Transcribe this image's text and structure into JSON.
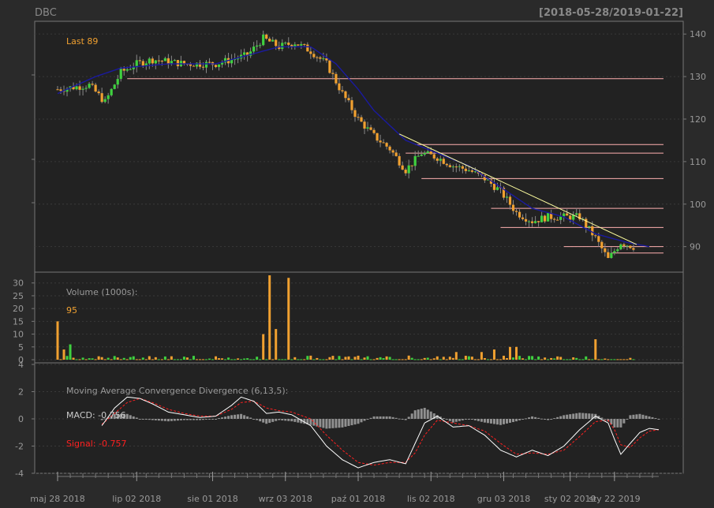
{
  "header": {
    "symbol": "DBC",
    "range": "[2018-05-28/2019-01-22]"
  },
  "colors": {
    "background": "#2a2a2a",
    "panel": "#222222",
    "border": "#777777",
    "grid": "#3a3a3a",
    "up": "#3fd13f",
    "down": "#f0a030",
    "ma": "#1a1aa0",
    "hline": "#ffb0b0",
    "trendline": "#ffffa0",
    "label": "#999999",
    "macd_line": "#ffffff",
    "signal_line": "#ff2020",
    "hist": "#909090",
    "signal_text": "#ff2020"
  },
  "chart_data": [
    {
      "type": "candlestick",
      "panel": "price",
      "legend": "Last 89",
      "yticks": [
        90,
        100,
        110,
        120,
        130,
        140
      ],
      "ylim": [
        84,
        143
      ],
      "n": 182,
      "anchors": [
        [
          0,
          127
        ],
        [
          10,
          128
        ],
        [
          15,
          124
        ],
        [
          20,
          131
        ],
        [
          25,
          133
        ],
        [
          30,
          134
        ],
        [
          40,
          133
        ],
        [
          50,
          133
        ],
        [
          60,
          135
        ],
        [
          65,
          139
        ],
        [
          70,
          137
        ],
        [
          75,
          138
        ],
        [
          80,
          136
        ],
        [
          85,
          133
        ],
        [
          90,
          126
        ],
        [
          95,
          120
        ],
        [
          100,
          116
        ],
        [
          105,
          113
        ],
        [
          110,
          108
        ],
        [
          115,
          112
        ],
        [
          120,
          111
        ],
        [
          125,
          109
        ],
        [
          130,
          108
        ],
        [
          135,
          106
        ],
        [
          140,
          103
        ],
        [
          145,
          98
        ],
        [
          150,
          96
        ],
        [
          155,
          97
        ],
        [
          160,
          97
        ],
        [
          165,
          97
        ],
        [
          170,
          92
        ],
        [
          174,
          87
        ],
        [
          178,
          91
        ],
        [
          182,
          90
        ],
        [
          187,
          89
        ]
      ],
      "moving_average": [
        [
          0,
          126
        ],
        [
          12,
          130
        ],
        [
          20,
          132
        ],
        [
          35,
          133
        ],
        [
          50,
          133
        ],
        [
          60,
          135
        ],
        [
          70,
          137
        ],
        [
          80,
          137
        ],
        [
          88,
          133
        ],
        [
          95,
          127
        ],
        [
          100,
          122
        ],
        [
          110,
          115
        ],
        [
          120,
          112
        ],
        [
          130,
          109
        ],
        [
          140,
          104
        ],
        [
          150,
          99
        ],
        [
          160,
          97
        ],
        [
          170,
          93
        ],
        [
          180,
          91
        ],
        [
          187,
          90
        ]
      ],
      "hlines": [
        {
          "from": 22,
          "to": 187,
          "y": 129.5
        },
        {
          "from": 115,
          "to": 187,
          "y": 106
        },
        {
          "from": 110,
          "to": 187,
          "y": 112
        },
        {
          "from": 113,
          "to": 187,
          "y": 114
        },
        {
          "from": 137,
          "to": 187,
          "y": 99
        },
        {
          "from": 140,
          "to": 187,
          "y": 94.5
        },
        {
          "from": 160,
          "to": 187,
          "y": 90
        },
        {
          "from": 175,
          "to": 187,
          "y": 88.5
        }
      ],
      "trendline": [
        [
          108,
          116.5
        ],
        [
          183,
          90.5
        ]
      ]
    },
    {
      "type": "bar",
      "panel": "volume",
      "label": "Volume (1000s):",
      "last_value": "95",
      "yticks": [
        0,
        5,
        10,
        15,
        20,
        25,
        30
      ],
      "ylim": [
        0,
        33
      ],
      "spikes": [
        [
          0,
          15
        ],
        [
          2,
          4
        ],
        [
          4,
          6
        ],
        [
          65,
          10
        ],
        [
          67,
          33
        ],
        [
          69,
          12
        ],
        [
          73,
          32
        ],
        [
          126,
          3
        ],
        [
          134,
          3
        ],
        [
          138,
          4
        ],
        [
          143,
          5
        ],
        [
          145,
          5
        ],
        [
          170,
          8
        ]
      ]
    },
    {
      "type": "line",
      "panel": "macd",
      "label": "Moving Average Convergence Divergence (6,13,5):",
      "macd_label": "MACD: -0.756",
      "signal_label": "Signal: -0.757",
      "yticks": [
        -4,
        -2,
        0,
        2,
        4
      ],
      "ylim": [
        -4,
        4
      ],
      "macd": [
        [
          14,
          -0.5
        ],
        [
          18,
          0.8
        ],
        [
          22,
          1.6
        ],
        [
          26,
          1.5
        ],
        [
          30,
          1.1
        ],
        [
          35,
          0.5
        ],
        [
          40,
          0.3
        ],
        [
          45,
          0.1
        ],
        [
          50,
          0.2
        ],
        [
          55,
          1.0
        ],
        [
          58,
          1.6
        ],
        [
          62,
          1.3
        ],
        [
          66,
          0.4
        ],
        [
          70,
          0.5
        ],
        [
          74,
          0.3
        ],
        [
          80,
          -0.5
        ],
        [
          85,
          -2.0
        ],
        [
          90,
          -3.0
        ],
        [
          95,
          -3.6
        ],
        [
          100,
          -3.2
        ],
        [
          105,
          -3.0
        ],
        [
          110,
          -3.3
        ],
        [
          113,
          -1.8
        ],
        [
          116,
          -0.3
        ],
        [
          120,
          0.2
        ],
        [
          125,
          -0.6
        ],
        [
          130,
          -0.5
        ],
        [
          135,
          -1.2
        ],
        [
          140,
          -2.3
        ],
        [
          145,
          -2.8
        ],
        [
          150,
          -2.3
        ],
        [
          155,
          -2.7
        ],
        [
          160,
          -2.0
        ],
        [
          165,
          -0.8
        ],
        [
          170,
          0.2
        ],
        [
          174,
          -0.3
        ],
        [
          176,
          -1.5
        ],
        [
          178,
          -2.6
        ],
        [
          181,
          -1.8
        ],
        [
          184,
          -1.0
        ],
        [
          187,
          -0.7
        ],
        [
          190,
          -0.8
        ]
      ],
      "signal": [
        [
          14,
          -0.4
        ],
        [
          18,
          0.4
        ],
        [
          22,
          1.2
        ],
        [
          26,
          1.5
        ],
        [
          30,
          1.2
        ],
        [
          35,
          0.7
        ],
        [
          40,
          0.4
        ],
        [
          45,
          0.2
        ],
        [
          50,
          0.2
        ],
        [
          55,
          0.7
        ],
        [
          58,
          1.2
        ],
        [
          62,
          1.3
        ],
        [
          66,
          0.8
        ],
        [
          70,
          0.6
        ],
        [
          74,
          0.5
        ],
        [
          80,
          0.0
        ],
        [
          85,
          -1.2
        ],
        [
          90,
          -2.3
        ],
        [
          95,
          -3.2
        ],
        [
          100,
          -3.4
        ],
        [
          105,
          -3.2
        ],
        [
          110,
          -3.2
        ],
        [
          113,
          -2.5
        ],
        [
          116,
          -1.2
        ],
        [
          120,
          -0.1
        ],
        [
          125,
          -0.3
        ],
        [
          130,
          -0.5
        ],
        [
          135,
          -0.9
        ],
        [
          140,
          -1.8
        ],
        [
          145,
          -2.6
        ],
        [
          150,
          -2.5
        ],
        [
          155,
          -2.6
        ],
        [
          160,
          -2.3
        ],
        [
          165,
          -1.3
        ],
        [
          170,
          -0.2
        ],
        [
          174,
          -0.1
        ],
        [
          176,
          -0.8
        ],
        [
          178,
          -1.9
        ],
        [
          181,
          -2.1
        ],
        [
          184,
          -1.4
        ],
        [
          187,
          -0.9
        ],
        [
          190,
          -0.8
        ]
      ]
    }
  ],
  "x_axis": {
    "ticks": [
      {
        "i": 0,
        "label": "maj 28 2018"
      },
      {
        "i": 25,
        "label": "lip 02 2018"
      },
      {
        "i": 49,
        "label": "sie 01 2018"
      },
      {
        "i": 72,
        "label": "wrz 03 2018"
      },
      {
        "i": 95,
        "label": "paź 01 2018"
      },
      {
        "i": 118,
        "label": "lis 02 2018"
      },
      {
        "i": 141,
        "label": "gru 03 2018"
      },
      {
        "i": 162,
        "label": "sty 02 2019"
      },
      {
        "i": 176,
        "label": "sty 22 2019"
      }
    ],
    "n_points": 191
  }
}
